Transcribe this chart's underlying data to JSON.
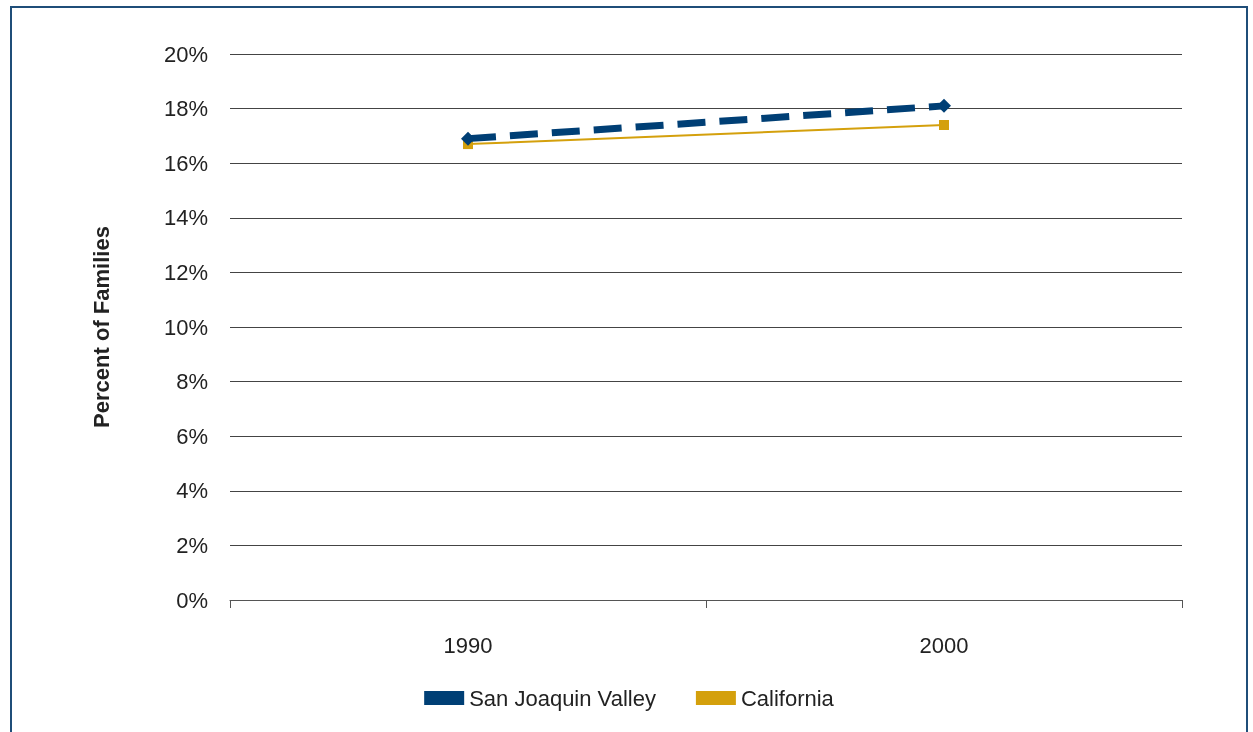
{
  "chart_data": {
    "type": "line",
    "ylabel": "Percent of Families",
    "categories": [
      "1990",
      "2000"
    ],
    "series": [
      {
        "name": "San Joaquin Valley",
        "color": "#003f75",
        "values": [
          16.9,
          18.1
        ],
        "marker": "diamond",
        "line_style": "dashed"
      },
      {
        "name": "California",
        "color": "#d4a00c",
        "values": [
          16.7,
          17.4
        ],
        "marker": "square",
        "line_style": "solid"
      }
    ],
    "ylim": [
      0,
      20
    ],
    "yticks": [
      {
        "value": 0,
        "label": "0%"
      },
      {
        "value": 2,
        "label": "2%"
      },
      {
        "value": 4,
        "label": "4%"
      },
      {
        "value": 6,
        "label": "6%"
      },
      {
        "value": 8,
        "label": "8%"
      },
      {
        "value": 10,
        "label": "10%"
      },
      {
        "value": 12,
        "label": "12%"
      },
      {
        "value": 14,
        "label": "14%"
      },
      {
        "value": 16,
        "label": "16%"
      },
      {
        "value": 18,
        "label": "18%"
      },
      {
        "value": 20,
        "label": "20%"
      }
    ],
    "grid": "y",
    "legend": "bottom"
  }
}
